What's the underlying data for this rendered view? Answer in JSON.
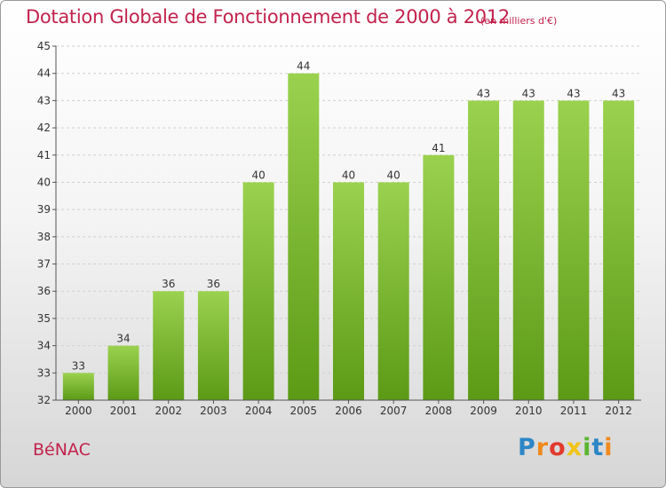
{
  "title": "Dotation Globale de Fonctionnement de 2000 à 2012",
  "unit_note": "(en milliers d'€)",
  "commune": "BéNAC",
  "brand": {
    "letters": [
      "P",
      "r",
      "o",
      "x",
      "i",
      "t",
      "i"
    ],
    "colors": [
      "#2d86c6",
      "#f08a1c",
      "#e23a2c",
      "#f0c419",
      "#5cb531",
      "#2d86c6",
      "#f08a1c"
    ]
  },
  "colors": {
    "bar_top": "#9ad24f",
    "bar_bottom": "#5c9a16",
    "title": "#c2224c",
    "axis_text": "#333333",
    "grid": "#cfcfcf"
  },
  "chart_data": {
    "type": "bar",
    "title": "Dotation Globale de Fonctionnement de 2000 à 2012",
    "subtitle": "(en milliers d'€)",
    "categories": [
      "2000",
      "2001",
      "2002",
      "2003",
      "2004",
      "2005",
      "2006",
      "2007",
      "2008",
      "2009",
      "2010",
      "2011",
      "2012"
    ],
    "values": [
      33,
      34,
      36,
      36,
      40,
      44,
      40,
      40,
      41,
      43,
      43,
      43,
      43
    ],
    "ylim": [
      32,
      45
    ],
    "yticks": [
      32,
      33,
      34,
      35,
      36,
      37,
      38,
      39,
      40,
      41,
      42,
      43,
      44,
      45
    ],
    "grid": true,
    "data_labels": true
  }
}
